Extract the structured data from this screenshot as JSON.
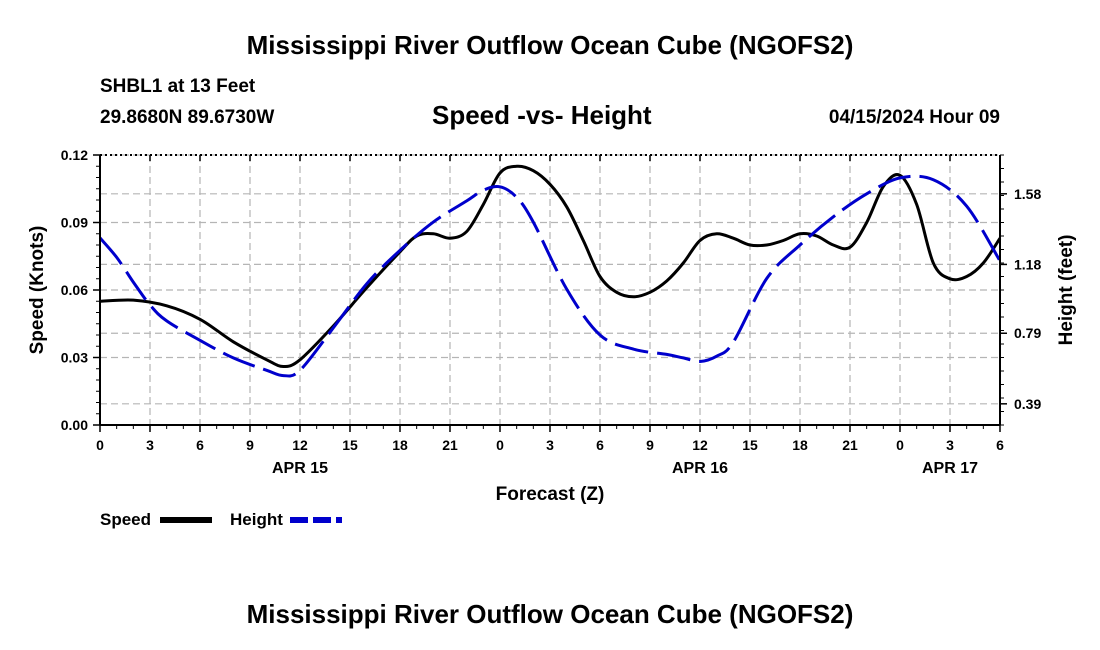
{
  "header": {
    "title": "Mississippi River Outflow Ocean Cube (NGOFS2)",
    "station": "SHBL1 at 13 Feet",
    "coords": "29.8680N  89.6730W",
    "chart_title": "Speed -vs- Height",
    "datetime": "04/15/2024 Hour 09"
  },
  "footer": {
    "title": "Mississippi River Outflow Ocean Cube (NGOFS2)"
  },
  "chart_data": {
    "type": "line",
    "title": "Speed -vs- Height",
    "xlabel": "Forecast (Z)",
    "ylabel": "Speed (Knots)",
    "y2label": "Height (feet)",
    "xlim": [
      0,
      54
    ],
    "ylim": [
      0,
      0.12
    ],
    "y2lim": [
      0.27,
      1.8
    ],
    "grid": true,
    "x_tick_values": [
      0,
      3,
      6,
      9,
      12,
      15,
      18,
      21,
      24,
      27,
      30,
      33,
      36,
      39,
      42,
      45,
      48,
      51,
      54
    ],
    "x_tick_labels": [
      "0",
      "3",
      "6",
      "9",
      "12",
      "15",
      "18",
      "21",
      "0",
      "3",
      "6",
      "9",
      "12",
      "15",
      "18",
      "21",
      "0",
      "3",
      "6"
    ],
    "date_labels": [
      {
        "x": 12,
        "label": "APR 15"
      },
      {
        "x": 36,
        "label": "APR 16"
      },
      {
        "x": 51,
        "label": "APR 17"
      }
    ],
    "y_ticks": [
      0.0,
      0.03,
      0.06,
      0.09,
      0.12
    ],
    "y_tick_labels": [
      "0.00",
      "0.03",
      "0.06",
      "0.09",
      "0.12"
    ],
    "y2_ticks": [
      0.39,
      0.79,
      1.18,
      1.58
    ],
    "y2_tick_labels": [
      "0.39",
      "0.79",
      "1.18",
      "1.58"
    ],
    "series": [
      {
        "name": "Speed",
        "axis": "left",
        "color": "#000000",
        "style": "solid",
        "x": [
          0,
          2,
          4,
          6,
          8,
          10,
          11,
          12,
          14,
          16,
          18,
          19,
          20,
          21,
          22,
          23,
          24,
          25,
          26,
          27,
          28,
          29,
          30,
          31,
          32,
          33,
          34,
          35,
          36,
          37,
          38,
          39,
          40,
          41,
          42,
          43,
          44,
          45,
          46,
          47,
          48,
          49,
          50,
          51,
          52,
          53,
          54
        ],
        "values": [
          0.055,
          0.0555,
          0.053,
          0.047,
          0.037,
          0.029,
          0.026,
          0.029,
          0.044,
          0.061,
          0.077,
          0.084,
          0.085,
          0.083,
          0.086,
          0.098,
          0.112,
          0.115,
          0.113,
          0.107,
          0.097,
          0.082,
          0.066,
          0.059,
          0.057,
          0.059,
          0.064,
          0.072,
          0.082,
          0.085,
          0.083,
          0.08,
          0.08,
          0.082,
          0.085,
          0.084,
          0.08,
          0.079,
          0.09,
          0.106,
          0.111,
          0.098,
          0.072,
          0.065,
          0.066,
          0.072,
          0.083
        ]
      },
      {
        "name": "Height",
        "axis": "right",
        "color": "#0000cc",
        "style": "dashed",
        "x": [
          0,
          1,
          2,
          3,
          4,
          6,
          8,
          10,
          11,
          12,
          14,
          16,
          18,
          20,
          22,
          23,
          24,
          25,
          26,
          28,
          30,
          32,
          34,
          35,
          36,
          37,
          38,
          40,
          42,
          44,
          46,
          48,
          50,
          52,
          54
        ],
        "values": [
          1.33,
          1.22,
          1.08,
          0.95,
          0.86,
          0.75,
          0.65,
          0.58,
          0.55,
          0.58,
          0.82,
          1.07,
          1.26,
          1.42,
          1.54,
          1.6,
          1.62,
          1.56,
          1.42,
          1.04,
          0.78,
          0.7,
          0.67,
          0.65,
          0.63,
          0.66,
          0.74,
          1.1,
          1.29,
          1.45,
          1.58,
          1.67,
          1.66,
          1.51,
          1.2
        ]
      }
    ],
    "legend": [
      {
        "label": "Speed",
        "color": "#000000",
        "style": "solid"
      },
      {
        "label": "Height",
        "color": "#0000cc",
        "style": "dashed"
      }
    ],
    "legend_position": "bottom-left"
  }
}
